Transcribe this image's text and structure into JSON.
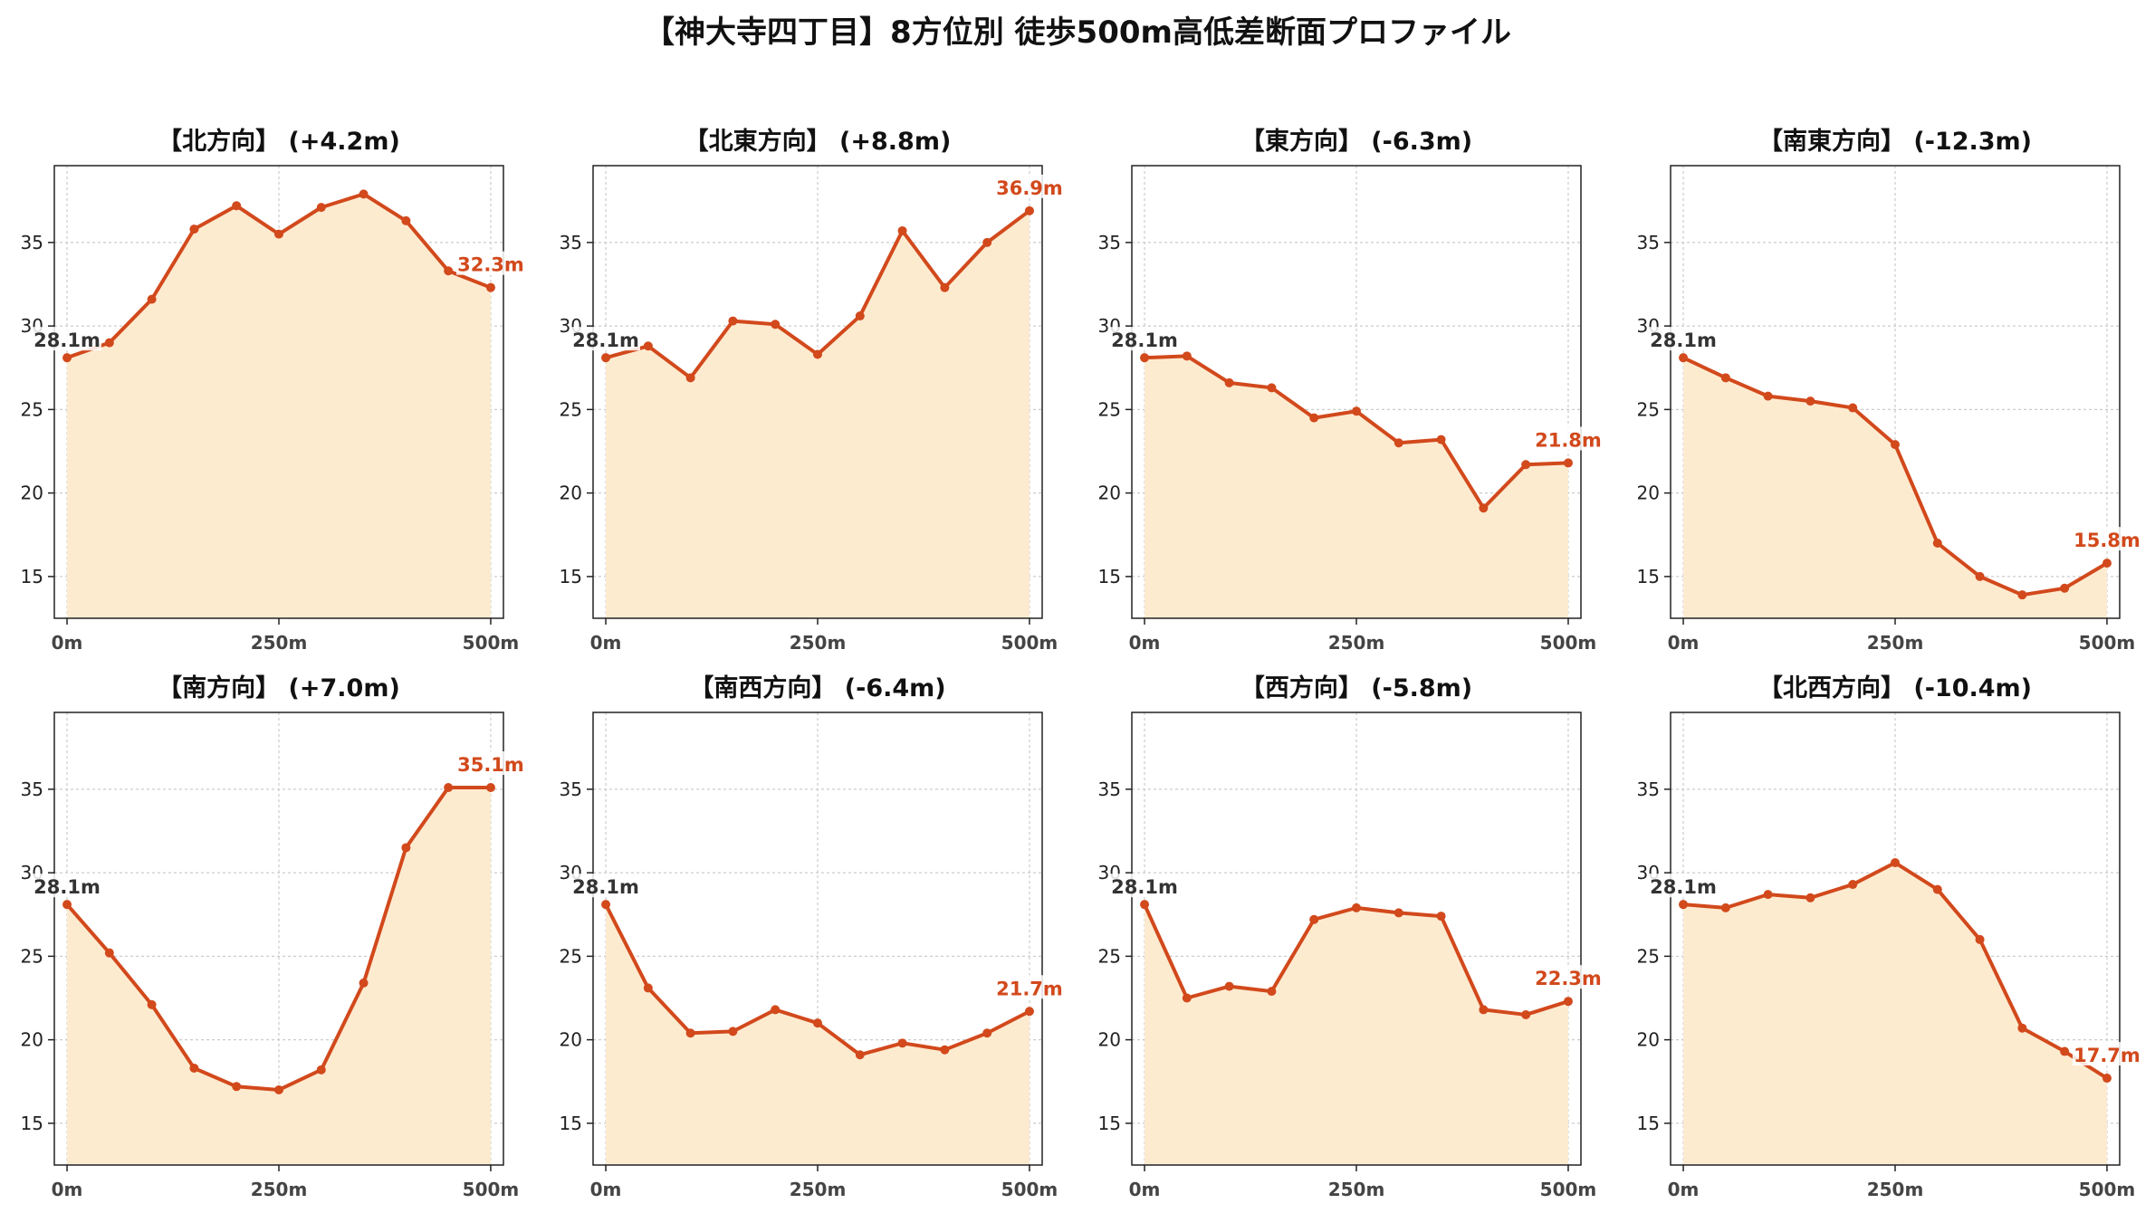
{
  "title": "【神大寺四丁目】8方位別 徒歩500m高低差断面プロファイル",
  "colors": {
    "line": "#d2491c",
    "fill": "#fdebd0",
    "start_label": "#333333",
    "end_label": "#d2491c",
    "grid": "#cccccc"
  },
  "chart_data": [
    {
      "type": "area",
      "title": "【北方向】 (+4.2m)",
      "x": [
        0,
        50,
        100,
        150,
        200,
        250,
        300,
        350,
        400,
        450,
        500
      ],
      "values": [
        28.1,
        29.0,
        31.6,
        35.8,
        37.2,
        35.5,
        37.1,
        37.9,
        36.3,
        33.3,
        32.3
      ],
      "xticks": [
        "0m",
        "250m",
        "500m"
      ],
      "yticks": [
        "15",
        "20",
        "25",
        "30",
        "35"
      ],
      "start_label": "28.1m",
      "end_label": "32.3m",
      "ylim": [
        12.5,
        39.6
      ],
      "xlim": [
        -15,
        515
      ],
      "grid": true
    },
    {
      "type": "area",
      "title": "【北東方向】 (+8.8m)",
      "x": [
        0,
        50,
        100,
        150,
        200,
        250,
        300,
        350,
        400,
        450,
        500
      ],
      "values": [
        28.1,
        28.8,
        26.9,
        30.3,
        30.1,
        28.3,
        30.6,
        35.7,
        32.3,
        35.0,
        36.9
      ],
      "xticks": [
        "0m",
        "250m",
        "500m"
      ],
      "yticks": [
        "15",
        "20",
        "25",
        "30",
        "35"
      ],
      "start_label": "28.1m",
      "end_label": "36.9m",
      "ylim": [
        12.5,
        39.6
      ],
      "xlim": [
        -15,
        515
      ],
      "grid": true
    },
    {
      "type": "area",
      "title": "【東方向】 (-6.3m)",
      "x": [
        0,
        50,
        100,
        150,
        200,
        250,
        300,
        350,
        400,
        450,
        500
      ],
      "values": [
        28.1,
        28.2,
        26.6,
        26.3,
        24.5,
        24.9,
        23.0,
        23.2,
        19.1,
        21.7,
        21.8
      ],
      "xticks": [
        "0m",
        "250m",
        "500m"
      ],
      "yticks": [
        "15",
        "20",
        "25",
        "30",
        "35"
      ],
      "start_label": "28.1m",
      "end_label": "21.8m",
      "ylim": [
        12.5,
        39.6
      ],
      "xlim": [
        -15,
        515
      ],
      "grid": true
    },
    {
      "type": "area",
      "title": "【南東方向】 (-12.3m)",
      "x": [
        0,
        50,
        100,
        150,
        200,
        250,
        300,
        350,
        400,
        450,
        500
      ],
      "values": [
        28.1,
        26.9,
        25.8,
        25.5,
        25.1,
        22.9,
        17.0,
        15.0,
        13.9,
        14.3,
        15.8
      ],
      "xticks": [
        "0m",
        "250m",
        "500m"
      ],
      "yticks": [
        "15",
        "20",
        "25",
        "30",
        "35"
      ],
      "start_label": "28.1m",
      "end_label": "15.8m",
      "ylim": [
        12.5,
        39.6
      ],
      "xlim": [
        -15,
        515
      ],
      "grid": true
    },
    {
      "type": "area",
      "title": "【南方向】 (+7.0m)",
      "x": [
        0,
        50,
        100,
        150,
        200,
        250,
        300,
        350,
        400,
        450,
        500
      ],
      "values": [
        28.1,
        25.2,
        22.1,
        18.3,
        17.2,
        17.0,
        18.2,
        23.4,
        31.5,
        35.1,
        35.1
      ],
      "xticks": [
        "0m",
        "250m",
        "500m"
      ],
      "yticks": [
        "15",
        "20",
        "25",
        "30",
        "35"
      ],
      "start_label": "28.1m",
      "end_label": "35.1m",
      "ylim": [
        12.5,
        39.6
      ],
      "xlim": [
        -15,
        515
      ],
      "grid": true
    },
    {
      "type": "area",
      "title": "【南西方向】 (-6.4m)",
      "x": [
        0,
        50,
        100,
        150,
        200,
        250,
        300,
        350,
        400,
        450,
        500
      ],
      "values": [
        28.1,
        23.1,
        20.4,
        20.5,
        21.8,
        21.0,
        19.1,
        19.8,
        19.4,
        20.4,
        21.7
      ],
      "xticks": [
        "0m",
        "250m",
        "500m"
      ],
      "yticks": [
        "15",
        "20",
        "25",
        "30",
        "35"
      ],
      "start_label": "28.1m",
      "end_label": "21.7m",
      "ylim": [
        12.5,
        39.6
      ],
      "xlim": [
        -15,
        515
      ],
      "grid": true
    },
    {
      "type": "area",
      "title": "【西方向】 (-5.8m)",
      "x": [
        0,
        50,
        100,
        150,
        200,
        250,
        300,
        350,
        400,
        450,
        500
      ],
      "values": [
        28.1,
        22.5,
        23.2,
        22.9,
        27.2,
        27.9,
        27.6,
        27.4,
        21.8,
        21.5,
        22.3
      ],
      "xticks": [
        "0m",
        "250m",
        "500m"
      ],
      "yticks": [
        "15",
        "20",
        "25",
        "30",
        "35"
      ],
      "start_label": "28.1m",
      "end_label": "22.3m",
      "ylim": [
        12.5,
        39.6
      ],
      "xlim": [
        -15,
        515
      ],
      "grid": true
    },
    {
      "type": "area",
      "title": "【北西方向】 (-10.4m)",
      "x": [
        0,
        50,
        100,
        150,
        200,
        250,
        300,
        350,
        400,
        450,
        500
      ],
      "values": [
        28.1,
        27.9,
        28.7,
        28.5,
        29.3,
        30.6,
        29.0,
        26.0,
        20.7,
        19.3,
        17.7
      ],
      "xticks": [
        "0m",
        "250m",
        "500m"
      ],
      "yticks": [
        "15",
        "20",
        "25",
        "30",
        "35"
      ],
      "start_label": "28.1m",
      "end_label": "17.7m",
      "ylim": [
        12.5,
        39.6
      ],
      "xlim": [
        -15,
        515
      ],
      "grid": true
    }
  ]
}
